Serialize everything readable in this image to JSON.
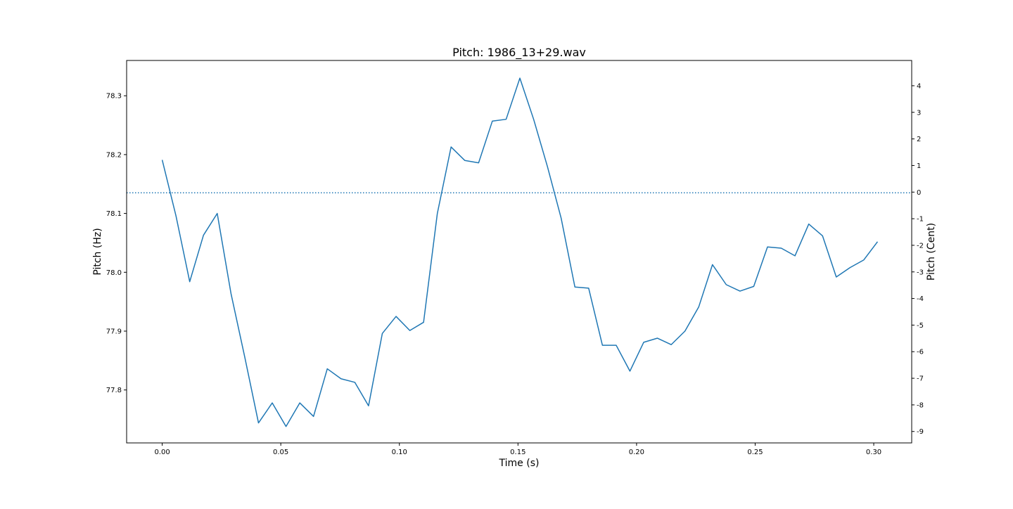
{
  "chart_data": {
    "type": "line",
    "title": "Pitch: 1986_13+29.wav",
    "xlabel": "Time (s)",
    "ylabel": "Pitch (Hz)",
    "ylabel_right": "Pitch (Cent)",
    "xlim": [
      -0.015,
      0.316
    ],
    "ylim": [
      77.71,
      78.36
    ],
    "ylim_right": [
      -9.43,
      4.95
    ],
    "x_ticks": [
      "0.00",
      "0.05",
      "0.10",
      "0.15",
      "0.20",
      "0.25",
      "0.30"
    ],
    "x_tick_values": [
      0.0,
      0.05,
      0.1,
      0.15,
      0.2,
      0.25,
      0.3
    ],
    "y_ticks": [
      "77.8",
      "77.9",
      "78.0",
      "78.1",
      "78.2",
      "78.3"
    ],
    "y_tick_values": [
      77.8,
      77.9,
      78.0,
      78.1,
      78.2,
      78.3
    ],
    "y_right_ticks": [
      "-9",
      "-8",
      "-7",
      "-6",
      "-5",
      "-4",
      "-3",
      "-2",
      "-1",
      "0",
      "1",
      "2",
      "3",
      "4"
    ],
    "y_right_tick_values": [
      -9,
      -8,
      -7,
      -6,
      -5,
      -4,
      -3,
      -2,
      -1,
      0,
      1,
      2,
      3,
      4
    ],
    "reference_line": {
      "y": 78.135,
      "style": "dotted"
    },
    "grid": false,
    "series": [
      {
        "color": "#1f77b4",
        "x": [
          0.0,
          0.0058,
          0.0116,
          0.0174,
          0.0232,
          0.029,
          0.0348,
          0.0406,
          0.0464,
          0.0522,
          0.058,
          0.0638,
          0.0696,
          0.0754,
          0.0812,
          0.087,
          0.0928,
          0.0986,
          0.1044,
          0.1102,
          0.116,
          0.1218,
          0.1276,
          0.1334,
          0.1392,
          0.145,
          0.1508,
          0.1566,
          0.1624,
          0.1682,
          0.174,
          0.1798,
          0.1856,
          0.1914,
          0.1972,
          0.203,
          0.2088,
          0.2146,
          0.2204,
          0.2262,
          0.232,
          0.2378,
          0.2436,
          0.2494,
          0.2552,
          0.261,
          0.2668,
          0.2726,
          0.2784,
          0.2842,
          0.29,
          0.2958,
          0.3016
        ],
        "y": [
          78.191,
          78.096,
          77.984,
          78.063,
          78.1,
          77.964,
          77.856,
          77.744,
          77.778,
          77.738,
          77.778,
          77.755,
          77.836,
          77.819,
          77.813,
          77.773,
          77.896,
          77.925,
          77.901,
          77.915,
          78.1,
          78.213,
          78.19,
          78.186,
          78.257,
          78.26,
          78.33,
          78.26,
          78.18,
          78.092,
          77.975,
          77.973,
          77.876,
          77.876,
          77.832,
          77.881,
          77.888,
          77.877,
          77.9,
          77.941,
          78.013,
          77.979,
          77.968,
          77.976,
          78.043,
          78.041,
          78.028,
          78.082,
          78.062,
          77.992,
          78.008,
          78.021,
          78.052
        ]
      }
    ]
  }
}
